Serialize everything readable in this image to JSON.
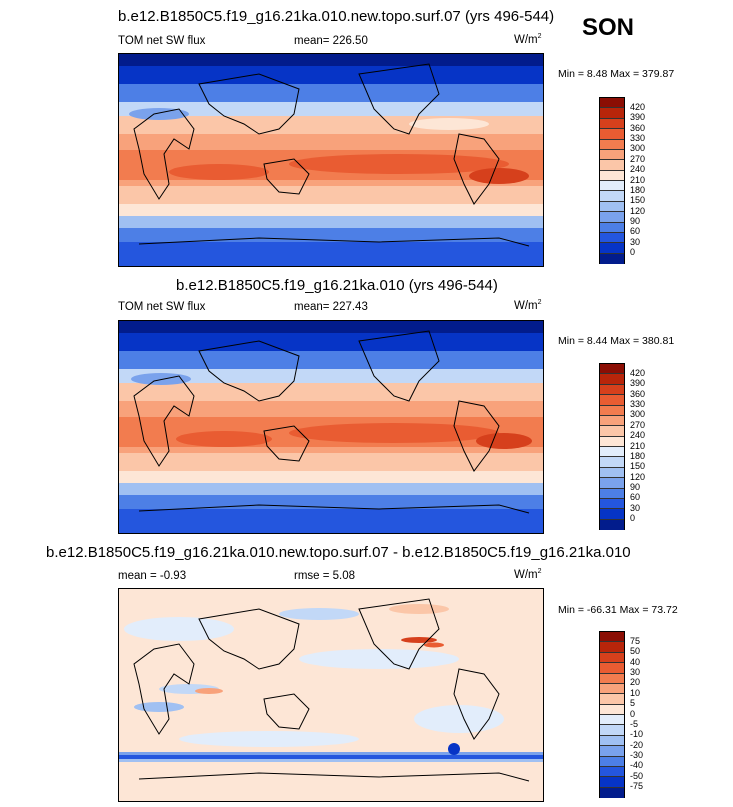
{
  "season": "SON",
  "panels": [
    {
      "title": "b.e12.B1850C5.f19_g16.21ka.010.new.topo.surf.07 (yrs 496-544)",
      "left_label": "TOM net SW flux",
      "center_label": "mean= 226.50",
      "units": "W/m",
      "units_sup": "2",
      "minmax": "Min =   8.48 Max = 379.87",
      "levels": [
        "420",
        "390",
        "360",
        "330",
        "300",
        "270",
        "240",
        "210",
        "180",
        "150",
        "120",
        "90",
        "60",
        "30",
        "0"
      ],
      "colors": [
        "#8b0e04",
        "#b8250a",
        "#d6401c",
        "#e95c32",
        "#f27c4f",
        "#f8a27b",
        "#fbc6a8",
        "#fde6d6",
        "#e2edfb",
        "#c2d8f7",
        "#a0c0f2",
        "#7aa2ec",
        "#4d7fe6",
        "#2456de",
        "#0634c6",
        "#021c8c"
      ]
    },
    {
      "title": "b.e12.B1850C5.f19_g16.21ka.010 (yrs 496-544)",
      "left_label": "TOM net SW flux",
      "center_label": "mean= 227.43",
      "units": "W/m",
      "units_sup": "2",
      "minmax": "Min =   8.44 Max = 380.81",
      "levels": [
        "420",
        "390",
        "360",
        "330",
        "300",
        "270",
        "240",
        "210",
        "180",
        "150",
        "120",
        "90",
        "60",
        "30",
        "0"
      ],
      "colors": [
        "#8b0e04",
        "#b8250a",
        "#d6401c",
        "#e95c32",
        "#f27c4f",
        "#f8a27b",
        "#fbc6a8",
        "#fde6d6",
        "#e2edfb",
        "#c2d8f7",
        "#a0c0f2",
        "#7aa2ec",
        "#4d7fe6",
        "#2456de",
        "#0634c6",
        "#021c8c"
      ]
    },
    {
      "title": "b.e12.B1850C5.f19_g16.21ka.010.new.topo.surf.07 - b.e12.B1850C5.f19_g16.21ka.010",
      "left_label": "mean =  -0.93",
      "center_label": "rmse =   5.08",
      "units": "W/m",
      "units_sup": "2",
      "minmax": "Min = -66.31 Max =  73.72",
      "levels": [
        "75",
        "50",
        "40",
        "30",
        "20",
        "10",
        "5",
        "0",
        "-5",
        "-10",
        "-20",
        "-30",
        "-40",
        "-50",
        "-75"
      ],
      "colors": [
        "#8b0e04",
        "#b8250a",
        "#d6401c",
        "#e95c32",
        "#f27c4f",
        "#f8a27b",
        "#fbc6a8",
        "#fde6d6",
        "#e2edfb",
        "#c2d8f7",
        "#a0c0f2",
        "#7aa2ec",
        "#4d7fe6",
        "#2456de",
        "#0634c6",
        "#021c8c"
      ]
    }
  ]
}
